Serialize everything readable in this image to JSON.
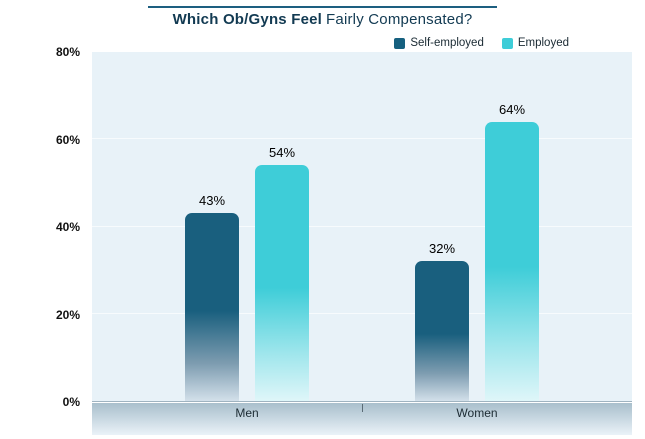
{
  "title": {
    "bold": "Which Ob/Gyns Feel",
    "regular": "Fairly Compensated?"
  },
  "chart_data": {
    "type": "bar",
    "title": "Which Ob/Gyns Feel Fairly Compensated?",
    "categories": [
      "Men",
      "Women"
    ],
    "series": [
      {
        "name": "Self-employed",
        "values": [
          43,
          32
        ],
        "color": "#16607f",
        "gradient": [
          "#195f7e",
          "#7d9cb0",
          "#d3e0ea"
        ]
      },
      {
        "name": "Employed",
        "values": [
          54,
          64
        ],
        "color": "#3ecdd8",
        "gradient": [
          "#3ecdd8",
          "#9fe6ec",
          "#dff6f9"
        ]
      }
    ],
    "xlabel": "",
    "ylabel": "",
    "ylim": [
      0,
      80
    ],
    "yticks": [
      "0%",
      "20%",
      "40%",
      "60%",
      "80%"
    ],
    "grid": true,
    "legend_position": "top-right",
    "value_suffix": "%"
  },
  "colors": {
    "title": "#123a52",
    "title_rule": "#1d5f80",
    "plot_bg": "#e8f2f8",
    "gridline": "#f7fbfd",
    "axis_band_top": "#a9bfcc",
    "axis_band_bottom": "#eaf2f8"
  }
}
